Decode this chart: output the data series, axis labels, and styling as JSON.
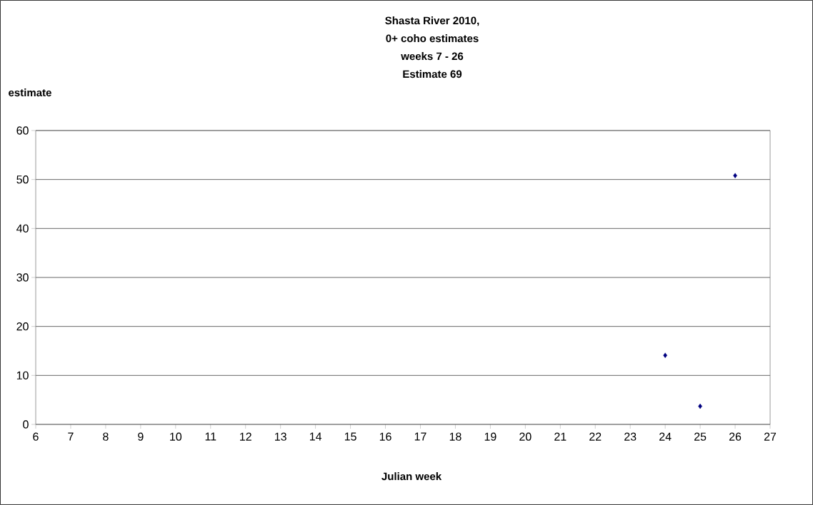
{
  "chart_data": {
    "type": "scatter",
    "title": "Shasta River 2010,",
    "subtitle": "0+ coho estimates",
    "annotations": [
      "weeks  7 - 26",
      "Estimate 69"
    ],
    "xlabel": "Julian week",
    "ylabel": "estimate",
    "x": [
      24,
      25,
      26
    ],
    "series": [
      {
        "color": "#000080",
        "values": [
          14.1,
          3.7,
          50.8
        ]
      }
    ],
    "xlim": [
      6,
      27
    ],
    "xticks": [
      6,
      7,
      8,
      9,
      10,
      11,
      12,
      13,
      14,
      15,
      16,
      17,
      18,
      19,
      20,
      21,
      22,
      23,
      24,
      25,
      26,
      27
    ],
    "ylim": [
      0,
      60
    ],
    "yticks": [
      0,
      10,
      20,
      30,
      40,
      50,
      60
    ],
    "grid": "y",
    "marker": "diamond"
  }
}
